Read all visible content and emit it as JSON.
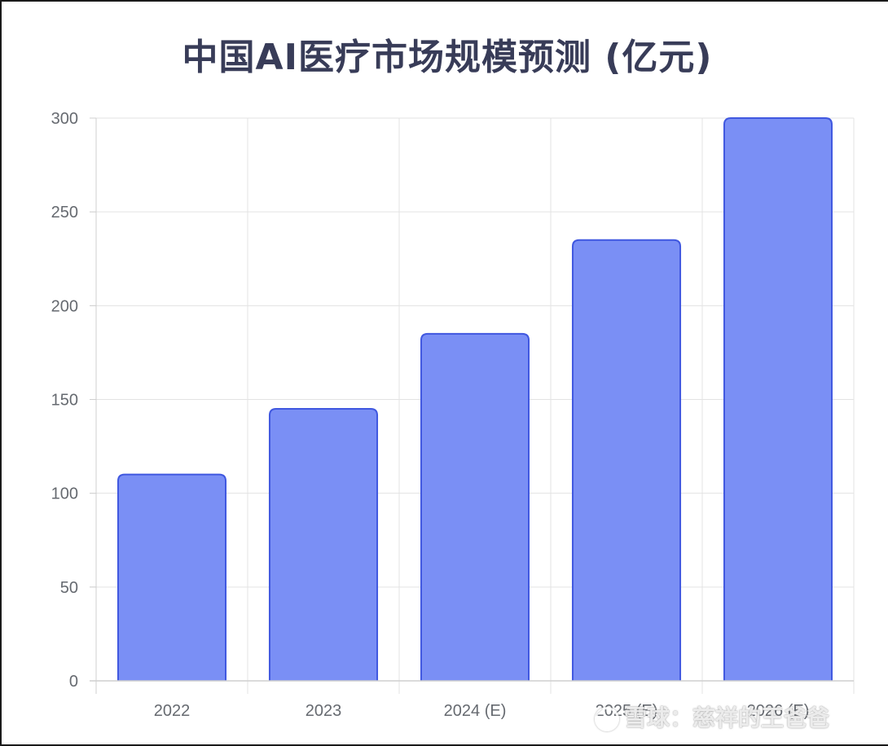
{
  "chart_data": {
    "type": "bar",
    "title": "中国AI医疗市场规模预测 (亿元)",
    "categories": [
      "2022",
      "2023",
      "2024 (E)",
      "2025 (E)",
      "2026 (E)"
    ],
    "values": [
      110,
      145,
      185,
      235,
      300
    ],
    "ylim": [
      0,
      300
    ],
    "yticks": [
      0,
      50,
      100,
      150,
      200,
      250,
      300
    ],
    "xlabel": "",
    "ylabel": "",
    "grid": true,
    "colors": {
      "bar_fill": "#7a8ff5",
      "bar_stroke": "#4058e0",
      "grid": "#e3e3e3",
      "axis": "#cfcfcf"
    }
  },
  "watermark": {
    "text": "雪球：慈祥的王爸爸",
    "logo": "snowball-logo-icon"
  }
}
